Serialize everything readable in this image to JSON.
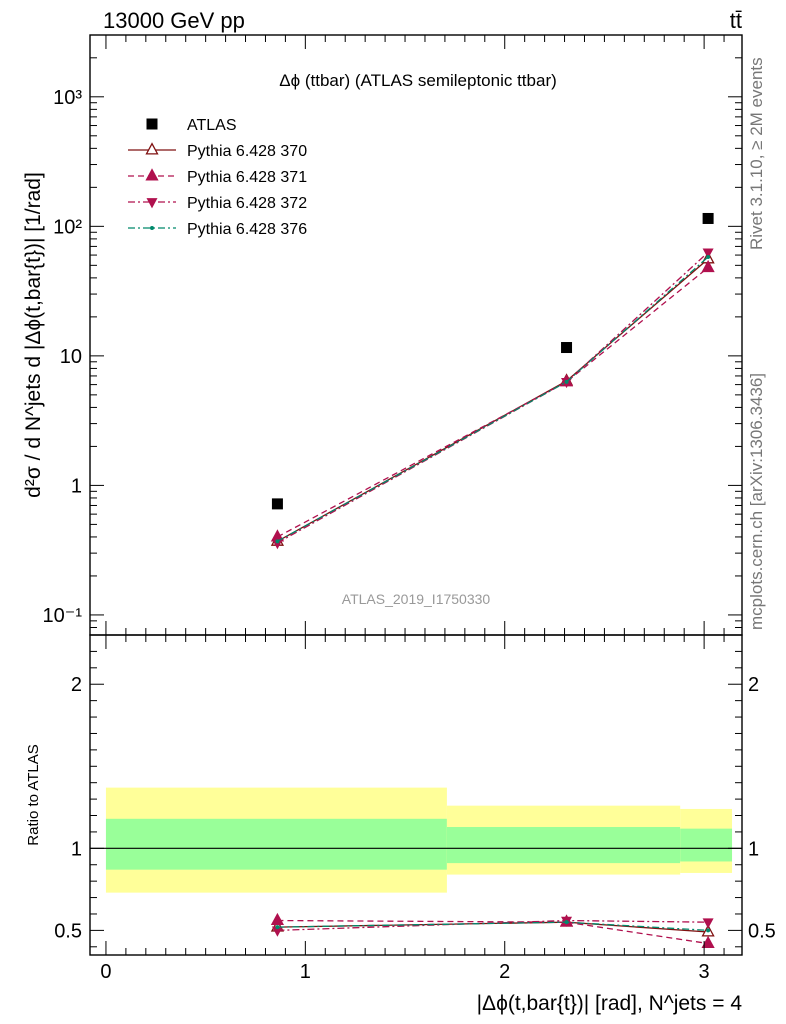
{
  "header": {
    "energy_label": "13000 GeV pp",
    "process_label": "tt̄"
  },
  "side_labels": {
    "rivet": "Rivet 3.1.10, ≥ 2M events",
    "mcplots": "mcplots.cern.ch [arXiv:1306.3436]"
  },
  "chart_data": [
    {
      "type": "scatter",
      "title": "Δϕ (ttbar) (ATLAS semileptonic ttbar)",
      "watermark": "ATLAS_2019_I1750330",
      "ylabel": "d²σ / d N^jets d |Δϕ(t,bar{t})| [1/rad]",
      "yscale": "log",
      "xlim": [
        -0.08,
        3.19
      ],
      "ylim": [
        0.07,
        3000
      ],
      "y_ticks": [
        {
          "value": 0.1,
          "label": "10⁻¹"
        },
        {
          "value": 1,
          "label": "1"
        },
        {
          "value": 10,
          "label": "10"
        },
        {
          "value": 100,
          "label": "10²"
        },
        {
          "value": 1000,
          "label": "10³"
        }
      ],
      "legend_position": "top-left",
      "series": [
        {
          "name": "ATLAS",
          "marker": "square",
          "color": "#000000",
          "line": "none",
          "x": [
            0.86,
            2.31,
            3.02
          ],
          "y": [
            0.72,
            11.6,
            115
          ]
        },
        {
          "name": "Pythia 6.428 370",
          "marker": "triangle-up-open",
          "color": "#7f1010",
          "line": "solid",
          "x": [
            0.86,
            2.31,
            3.02
          ],
          "y": [
            0.37,
            6.4,
            56
          ]
        },
        {
          "name": "Pythia 6.428 371",
          "marker": "triangle-up",
          "color": "#b0104e",
          "line": "dashed",
          "x": [
            0.86,
            2.31,
            3.02
          ],
          "y": [
            0.4,
            6.3,
            48
          ]
        },
        {
          "name": "Pythia 6.428 372",
          "marker": "triangle-down",
          "color": "#b0104e",
          "line": "dashdot",
          "x": [
            0.86,
            2.31,
            3.02
          ],
          "y": [
            0.36,
            6.3,
            63
          ]
        },
        {
          "name": "Pythia 6.428 376",
          "marker": "dot",
          "color": "#00896b",
          "line": "dashdot",
          "x": [
            0.86,
            2.31,
            3.02
          ],
          "y": [
            0.37,
            6.3,
            58
          ]
        }
      ]
    },
    {
      "type": "scatter",
      "ylabel": "Ratio to ATLAS",
      "xlabel": "|Δϕ(t,bar{t})| [rad], N^jets = 4",
      "xlim": [
        -0.08,
        3.19
      ],
      "ylim": [
        0.35,
        2.3
      ],
      "x_ticks": [
        0,
        1,
        2,
        3
      ],
      "y_ticks": [
        0.5,
        1,
        2
      ],
      "reference_line": 1,
      "bins": [
        {
          "lo": 0.0,
          "hi": 1.71,
          "stat": [
            0.87,
            1.18
          ],
          "total": [
            0.73,
            1.37
          ]
        },
        {
          "lo": 1.71,
          "hi": 2.88,
          "stat": [
            0.91,
            1.13
          ],
          "total": [
            0.84,
            1.26
          ]
        },
        {
          "lo": 2.88,
          "hi": 3.14,
          "stat": [
            0.92,
            1.12
          ],
          "total": [
            0.85,
            1.24
          ]
        }
      ],
      "series": [
        {
          "name": "Pythia 6.428 370",
          "x": [
            0.86,
            2.31,
            3.02
          ],
          "y": [
            0.52,
            0.55,
            0.49
          ]
        },
        {
          "name": "Pythia 6.428 371",
          "x": [
            0.86,
            2.31,
            3.02
          ],
          "y": [
            0.56,
            0.55,
            0.42
          ]
        },
        {
          "name": "Pythia 6.428 372",
          "x": [
            0.86,
            2.31,
            3.02
          ],
          "y": [
            0.5,
            0.56,
            0.55
          ]
        },
        {
          "name": "Pythia 6.428 376",
          "x": [
            0.86,
            2.31,
            3.02
          ],
          "y": [
            0.52,
            0.55,
            0.5
          ]
        }
      ]
    }
  ]
}
